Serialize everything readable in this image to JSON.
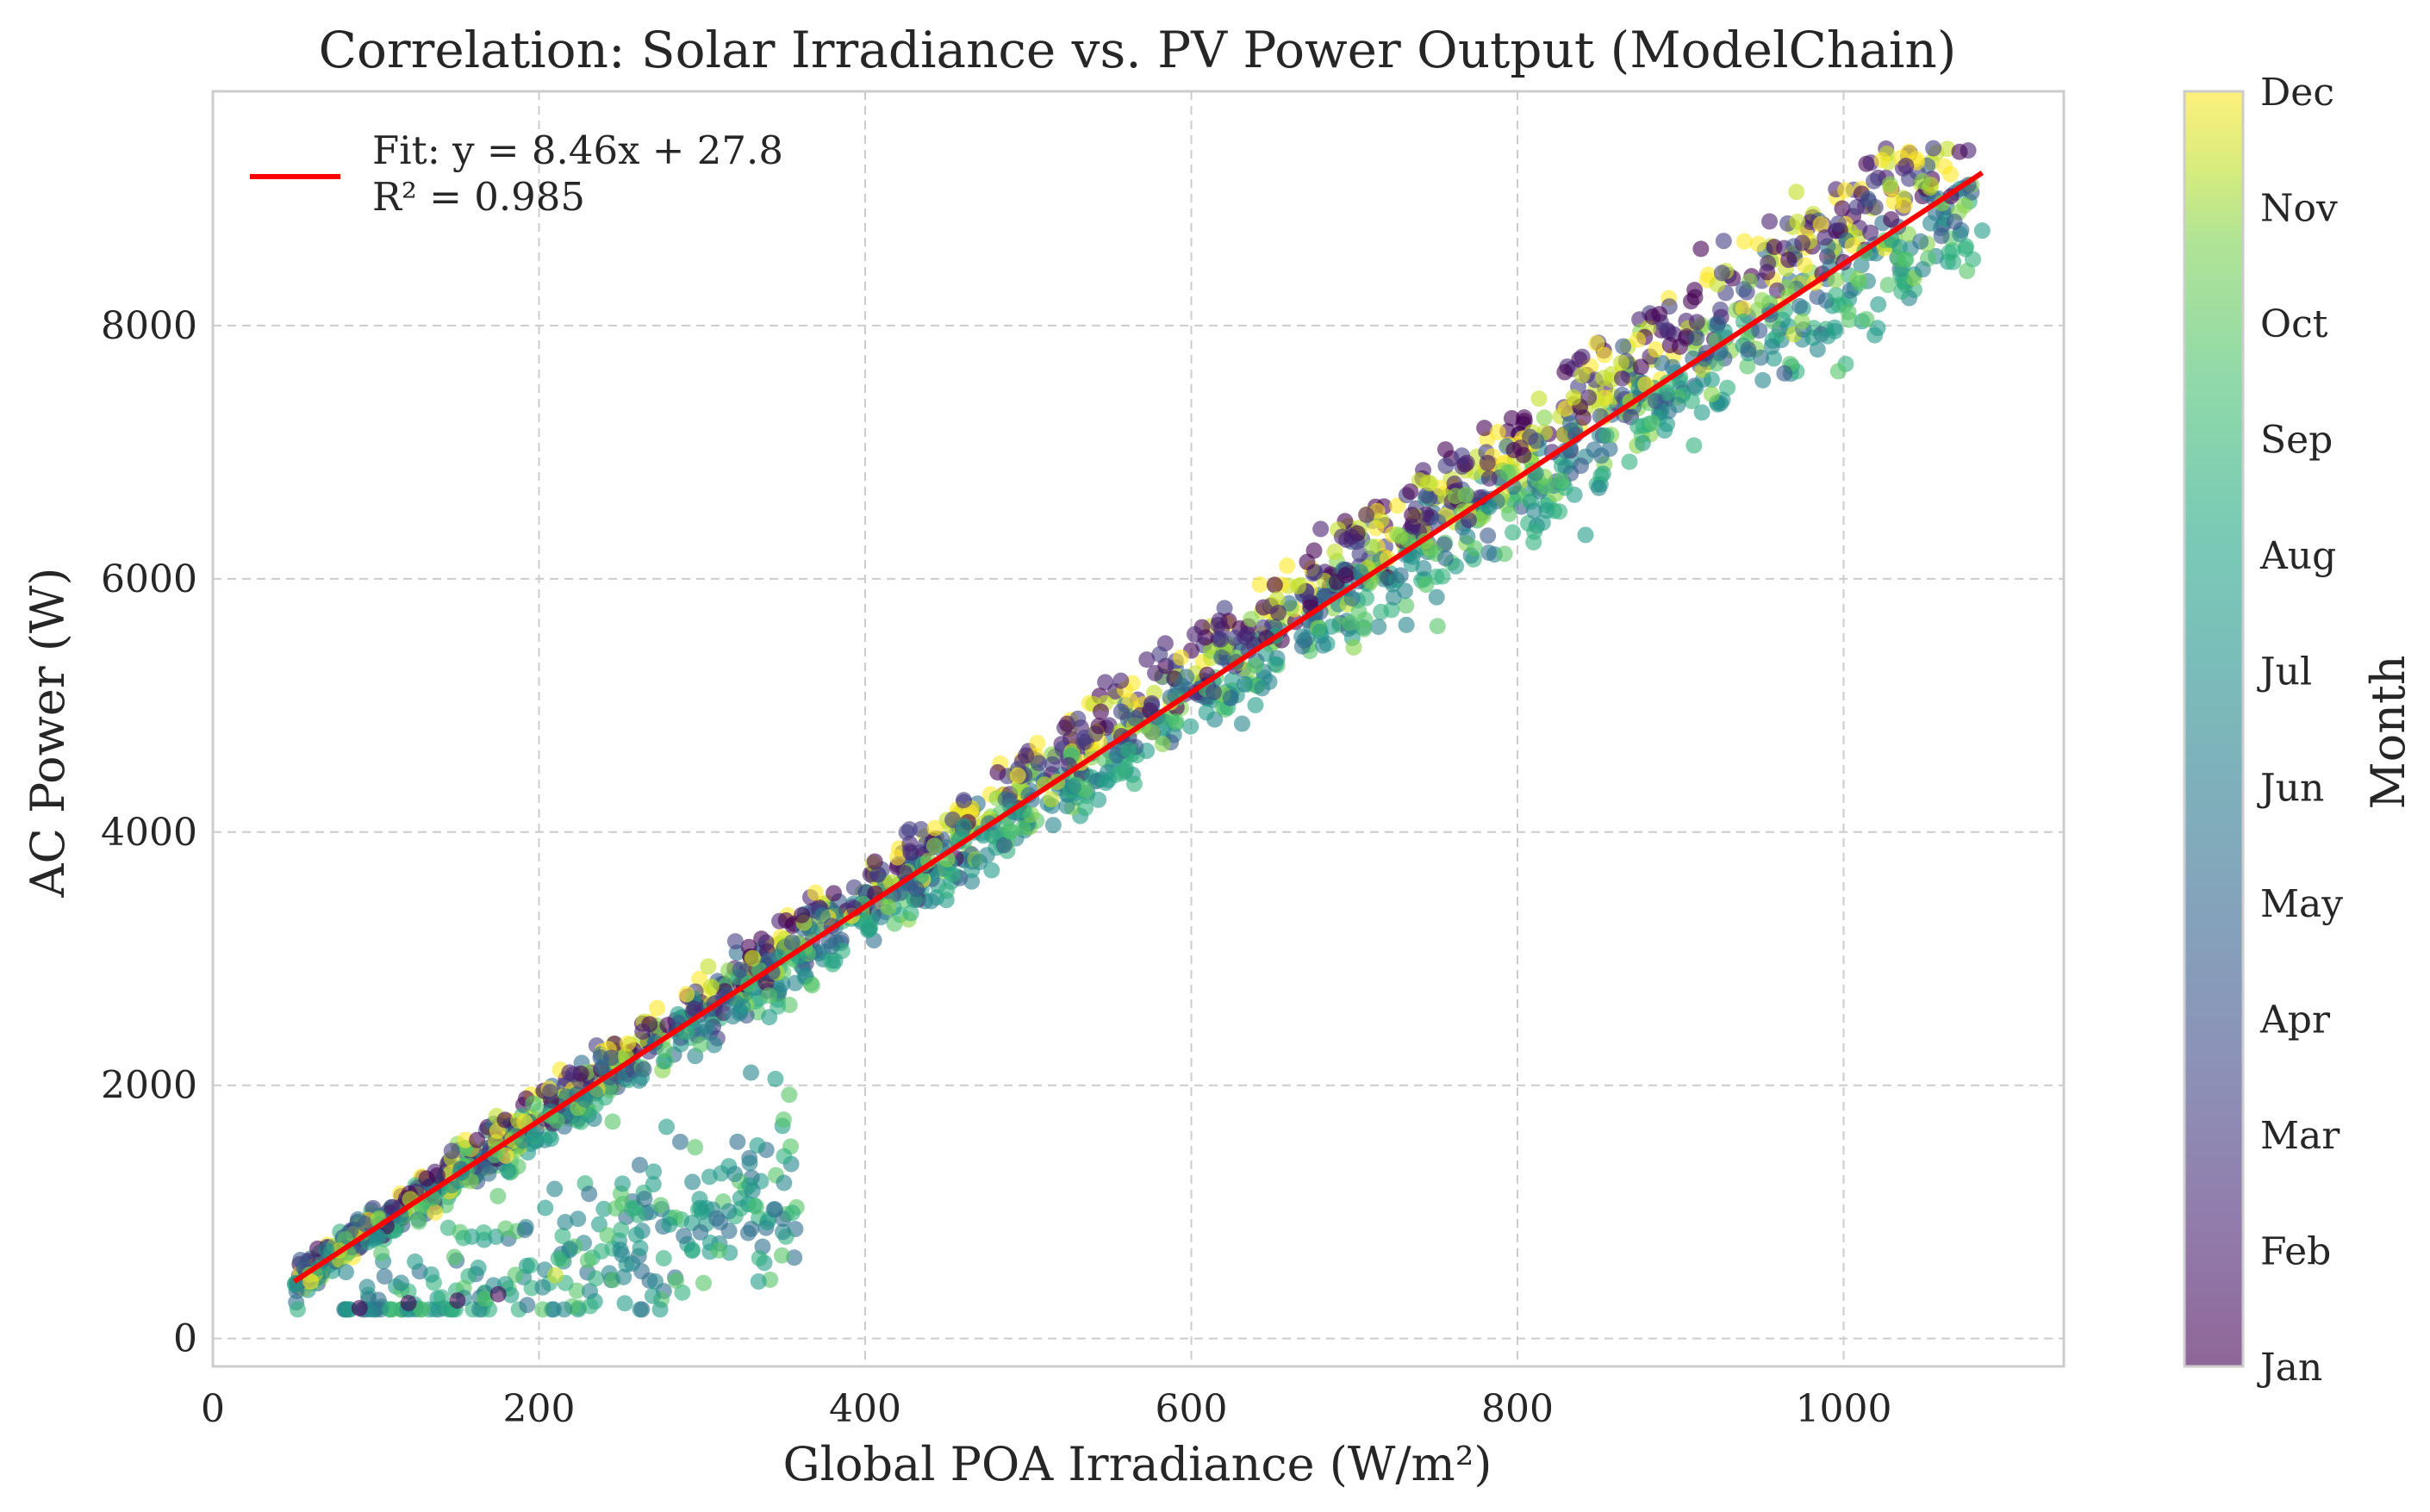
{
  "chart_data": {
    "type": "scatter",
    "title": "Correlation: Solar Irradiance vs. PV Power Output (ModelChain)",
    "xlabel": "Global POA Irradiance (W/m²)",
    "ylabel": "AC Power (W)",
    "xlim": [
      0,
      1135
    ],
    "ylim": [
      -220,
      9850
    ],
    "xticks": [
      0,
      200,
      400,
      600,
      800,
      1000
    ],
    "yticks": [
      0,
      2000,
      4000,
      6000,
      8000
    ],
    "grid": true,
    "legend": {
      "placement": "top-left",
      "entries": [
        {
          "label_line1": "Fit: y = 8.46x + 27.8",
          "label_line2": "R² = 0.985",
          "color": "#ff0000"
        }
      ]
    },
    "fit": {
      "slope": 8.46,
      "intercept": 27.8,
      "x_range": [
        50,
        1085
      ],
      "color": "#ff0000"
    },
    "colorbar": {
      "label": "Month",
      "colormap": "viridis",
      "ticks": [
        "Jan",
        "Feb",
        "Mar",
        "Apr",
        "May",
        "Jun",
        "Jul",
        "Aug",
        "Sep",
        "Oct",
        "Nov",
        "Dec"
      ]
    },
    "series": [
      {
        "color_by": "month",
        "x_range": [
          50,
          1085
        ],
        "y_range": [
          230,
          9400
        ],
        "points": [
          {
            "x": 52,
            "y": 230,
            "month": 8
          },
          {
            "x": 60,
            "y": 450,
            "month": 12
          },
          {
            "x": 90,
            "y": 240,
            "month": 1
          },
          {
            "x": 120,
            "y": 280,
            "month": 1
          },
          {
            "x": 150,
            "y": 300,
            "month": 1
          },
          {
            "x": 175,
            "y": 350,
            "month": 1
          },
          {
            "x": 210,
            "y": 500,
            "month": 11
          },
          {
            "x": 250,
            "y": 700,
            "month": 6
          },
          {
            "x": 280,
            "y": 900,
            "month": 7
          },
          {
            "x": 300,
            "y": 1000,
            "month": 7
          },
          {
            "x": 320,
            "y": 1300,
            "month": 6
          },
          {
            "x": 330,
            "y": 2100,
            "month": 6
          },
          {
            "x": 345,
            "y": 2050,
            "month": 7
          },
          {
            "x": 560,
            "y": 4500,
            "month": 8
          },
          {
            "x": 1000,
            "y": 8500,
            "month": 1
          },
          {
            "x": 1015,
            "y": 9000,
            "month": 4
          },
          {
            "x": 1055,
            "y": 9400,
            "month": 3
          },
          {
            "x": 1085,
            "y": 8750,
            "month": 7
          }
        ]
      }
    ]
  }
}
